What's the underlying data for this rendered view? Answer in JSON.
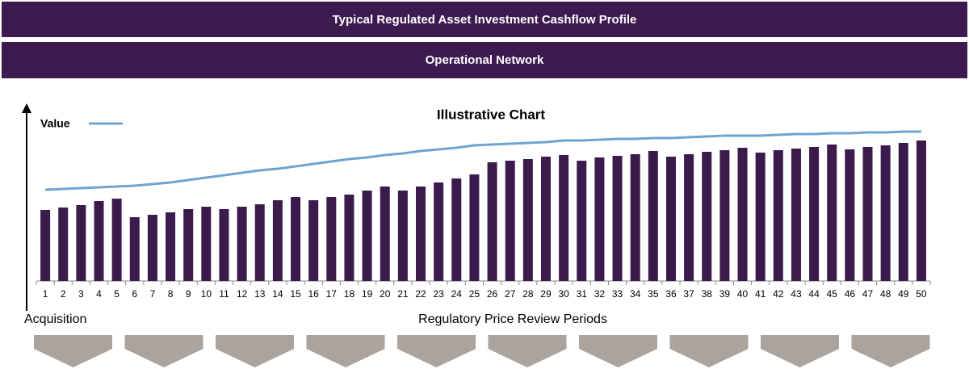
{
  "header": {
    "title": "Typical Regulated Asset Investment Cashflow Profile",
    "subtitle": "Operational Network"
  },
  "chart_data": {
    "type": "bar",
    "title": "Illustrative Chart",
    "x_label": "Regulatory Price Review Periods",
    "origin_label": "Acquisition",
    "categories": [
      "1",
      "2",
      "3",
      "4",
      "5",
      "6",
      "7",
      "8",
      "9",
      "10",
      "11",
      "12",
      "13",
      "14",
      "15",
      "16",
      "17",
      "18",
      "19",
      "20",
      "21",
      "22",
      "23",
      "24",
      "25",
      "26",
      "27",
      "28",
      "29",
      "30",
      "31",
      "32",
      "33",
      "34",
      "35",
      "36",
      "37",
      "38",
      "39",
      "40",
      "41",
      "42",
      "43",
      "44",
      "45",
      "46",
      "47",
      "48",
      "49",
      "50"
    ],
    "series": [
      {
        "type": "bar",
        "color": "#3b1a4c",
        "values": [
          88,
          91,
          94,
          99,
          102,
          79,
          82,
          85,
          89,
          92,
          89,
          92,
          95,
          100,
          104,
          100,
          104,
          107,
          112,
          117,
          112,
          117,
          122,
          127,
          132,
          147,
          149,
          151,
          154,
          156,
          149,
          153,
          155,
          157,
          161,
          154,
          157,
          160,
          162,
          165,
          159,
          162,
          164,
          166,
          169,
          163,
          166,
          168,
          171,
          174
        ]
      },
      {
        "type": "line",
        "name": "Value",
        "color": "#6fa4d0",
        "values": [
          113,
          114,
          115,
          116,
          117,
          118,
          120,
          122,
          125,
          128,
          131,
          134,
          137,
          139,
          142,
          145,
          148,
          151,
          153,
          156,
          158,
          161,
          163,
          165,
          168,
          169,
          170,
          171,
          172,
          174,
          174,
          175,
          176,
          176,
          177,
          177,
          178,
          179,
          180,
          180,
          180,
          181,
          182,
          182,
          183,
          183,
          184,
          184,
          185,
          185
        ]
      }
    ],
    "ylim": [
      0,
      217
    ],
    "legend": "upper left"
  }
}
